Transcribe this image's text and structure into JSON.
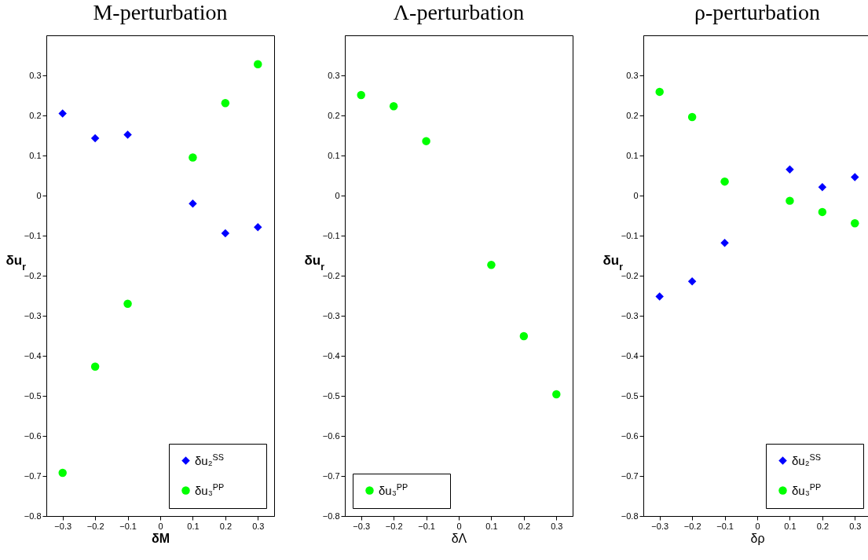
{
  "chart_data": [
    {
      "type": "scatter",
      "title": "M-perturbation",
      "xlabel": "δM",
      "ylabel": "δu$_{r}$",
      "xlim": [
        -0.35,
        0.35
      ],
      "xticks": [
        -0.3,
        -0.2,
        -0.1,
        0,
        0.1,
        0.2,
        0.3
      ],
      "ylim": [
        -0.8,
        0.4
      ],
      "yticks": [
        -0.8,
        -0.7,
        -0.6,
        -0.5,
        -0.4,
        -0.3,
        -0.2,
        -0.1,
        0,
        0.1,
        0.2,
        0.3
      ],
      "grid": false,
      "legend": "bottom right",
      "x": [
        -0.3,
        -0.2,
        -0.1,
        0.1,
        0.2,
        0.3
      ],
      "series": [
        {
          "name": "δu₂$^{SS}$",
          "color": "#0000ff",
          "marker": "diamond",
          "values": [
            0.205,
            0.143,
            0.152,
            -0.02,
            -0.094,
            -0.079
          ]
        },
        {
          "name": "δu₃$^{PP}$",
          "color": "#00ff00",
          "marker": "circle",
          "values": [
            -0.692,
            -0.427,
            -0.27,
            0.095,
            0.231,
            0.328
          ]
        }
      ]
    },
    {
      "type": "scatter",
      "title": "Λ-perturbation",
      "xlabel": "δΛ",
      "ylabel": "δu$_{r}$",
      "xlim": [
        -0.35,
        0.35
      ],
      "xticks": [
        -0.3,
        -0.2,
        -0.1,
        0,
        0.1,
        0.2,
        0.3
      ],
      "ylim": [
        -0.8,
        0.4
      ],
      "yticks": [
        -0.8,
        -0.7,
        -0.6,
        -0.5,
        -0.4,
        -0.3,
        -0.2,
        -0.1,
        0,
        0.1,
        0.2,
        0.3
      ],
      "grid": false,
      "legend": "bottom left",
      "x": [
        -0.3,
        -0.2,
        -0.1,
        0.1,
        0.2,
        0.3
      ],
      "series": [
        {
          "name": "δu₃$^{PP}$",
          "color": "#00ff00",
          "marker": "circle",
          "values": [
            0.251,
            0.223,
            0.136,
            -0.173,
            -0.351,
            -0.496
          ]
        }
      ]
    },
    {
      "type": "scatter",
      "title": "ρ-perturbation",
      "xlabel": "δρ",
      "ylabel": "δu$_{r}$",
      "xlim": [
        -0.35,
        0.35
      ],
      "xticks": [
        -0.3,
        -0.2,
        -0.1,
        0,
        0.1,
        0.2,
        0.3
      ],
      "ylim": [
        -0.8,
        0.4
      ],
      "yticks": [
        -0.8,
        -0.7,
        -0.6,
        -0.5,
        -0.4,
        -0.3,
        -0.2,
        -0.1,
        0,
        0.1,
        0.2,
        0.3
      ],
      "grid": false,
      "legend": "bottom right",
      "x": [
        -0.3,
        -0.2,
        -0.1,
        0.1,
        0.2,
        0.3
      ],
      "series": [
        {
          "name": "δu₂$^{SS}$",
          "color": "#0000ff",
          "marker": "diamond",
          "values": [
            -0.252,
            -0.214,
            -0.118,
            0.065,
            0.021,
            0.046
          ]
        },
        {
          "name": "δu₃$^{PP}$",
          "color": "#00ff00",
          "marker": "circle",
          "values": [
            0.259,
            0.196,
            0.035,
            -0.013,
            -0.041,
            -0.069
          ]
        }
      ]
    }
  ]
}
